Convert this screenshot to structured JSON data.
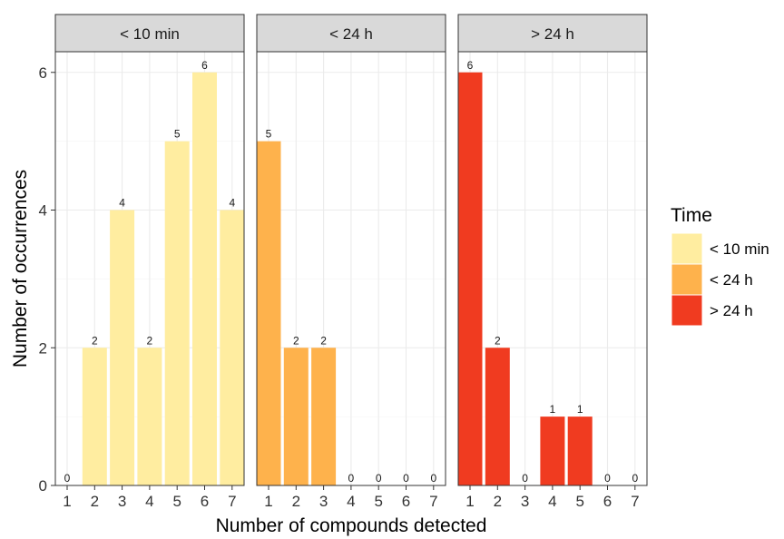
{
  "chart_data": {
    "type": "bar",
    "xlabel": "Number of compounds detected",
    "ylabel": "Number of occurrences",
    "categories": [
      "1",
      "2",
      "3",
      "4",
      "5",
      "6",
      "7"
    ],
    "yticks": [
      "0",
      "2",
      "4",
      "6"
    ],
    "ylim": [
      0,
      6.3
    ],
    "grid": true,
    "facets": [
      {
        "name": "< 10 min",
        "color": "#FFEDA0",
        "values": [
          0,
          2,
          4,
          2,
          5,
          6,
          4
        ]
      },
      {
        "name": "< 24 h",
        "color": "#FEB24C",
        "values": [
          5,
          2,
          2,
          0,
          0,
          0,
          0
        ]
      },
      {
        "name": "> 24 h",
        "color": "#F03B20",
        "values": [
          6,
          2,
          0,
          1,
          1,
          0,
          0
        ]
      }
    ],
    "legend": {
      "title": "Time",
      "position": "right",
      "entries": [
        "< 10 min",
        "< 24 h",
        "> 24 h"
      ]
    }
  }
}
